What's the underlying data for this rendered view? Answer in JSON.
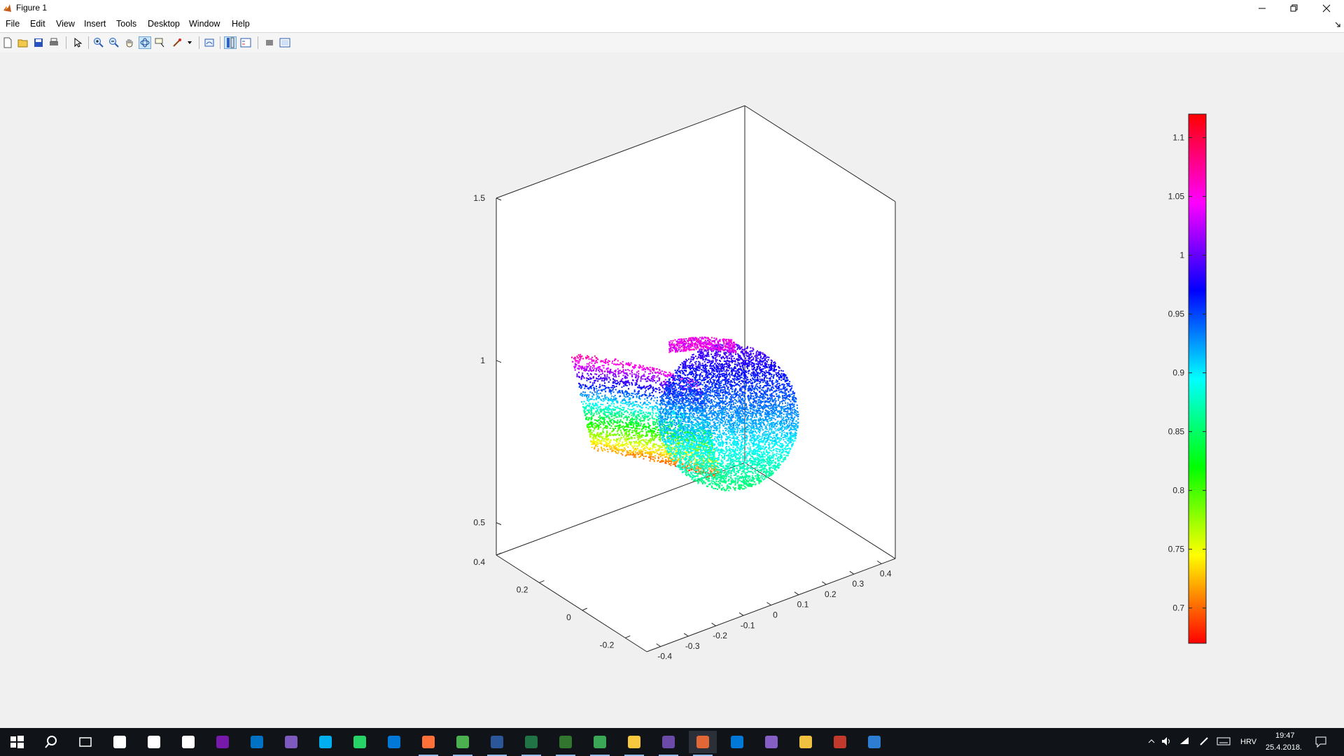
{
  "window": {
    "title": "Figure 1",
    "minimize_icon": "minimize-icon",
    "restore_icon": "restore-icon",
    "close_icon": "close-icon"
  },
  "menu": [
    "File",
    "Edit",
    "View",
    "Insert",
    "Tools",
    "Desktop",
    "Window",
    "Help"
  ],
  "toolbar": {
    "buttons": [
      "new-figure-icon",
      "open-file-icon",
      "save-icon",
      "print-icon",
      "edit-plot-icon",
      "zoom-in-icon",
      "zoom-out-icon",
      "pan-icon",
      "rotate-3d-icon",
      "data-cursor-icon",
      "brush-icon",
      "link-plot-icon",
      "colorbar-icon",
      "legend-icon",
      "hide-plot-tools-icon",
      "show-plot-tools-icon"
    ],
    "active": "rotate-3d-icon"
  },
  "chart_data": {
    "type": "scatter",
    "dimensions": 3,
    "title": "",
    "xlabel": "",
    "ylabel": "",
    "zlabel": "",
    "x_axis_ticks": [
      "-0.4",
      "-0.3",
      "-0.2",
      "-0.1",
      "0",
      "0.1",
      "0.2",
      "0.3",
      "0.4"
    ],
    "y_axis_ticks": [
      "-0.2",
      "0",
      "0.2",
      "0.4"
    ],
    "z_axis_ticks": [
      "0.5",
      "1",
      "1.5"
    ],
    "xlim": [
      -0.45,
      0.45
    ],
    "ylim": [
      -0.3,
      0.4
    ],
    "zlim": [
      0.4,
      1.5
    ],
    "colormap": "hsv",
    "colorbar": {
      "location": "right",
      "ticks": [
        "0.7",
        "0.75",
        "0.8",
        "0.85",
        "0.9",
        "0.95",
        "1",
        "1.05",
        "1.1"
      ],
      "range": [
        0.67,
        1.12
      ]
    },
    "point_cloud": "dense 3D point cloud (depth surface) colored by z value; left lobe low z (~0.7) red/yellow at bottom rising to ~1.1 magenta at top-left edge; right lobe ~0.85-1.0 green to blue"
  },
  "taskbar": {
    "apps": [
      "windows-start-icon",
      "search-icon",
      "task-view-icon",
      "store-icon",
      "clock-app-icon",
      "calculator-icon",
      "onenote-icon",
      "outlook-icon",
      "viber-icon",
      "skype-icon",
      "whatsapp-icon",
      "edge-icon",
      "firefox-icon",
      "chrome-icon",
      "word-icon",
      "excel-icon",
      "project-icon",
      "network-app-icon",
      "file-explorer-icon",
      "media-app-icon",
      "matlab-icon",
      "maps-icon",
      "visual-studio-icon",
      "tools-icon",
      "vnc-icon",
      "remote-desktop-icon"
    ],
    "active_app": "matlab-icon",
    "tray": {
      "language": "HRV",
      "time": "19:47",
      "date": "25.4.2018."
    }
  }
}
